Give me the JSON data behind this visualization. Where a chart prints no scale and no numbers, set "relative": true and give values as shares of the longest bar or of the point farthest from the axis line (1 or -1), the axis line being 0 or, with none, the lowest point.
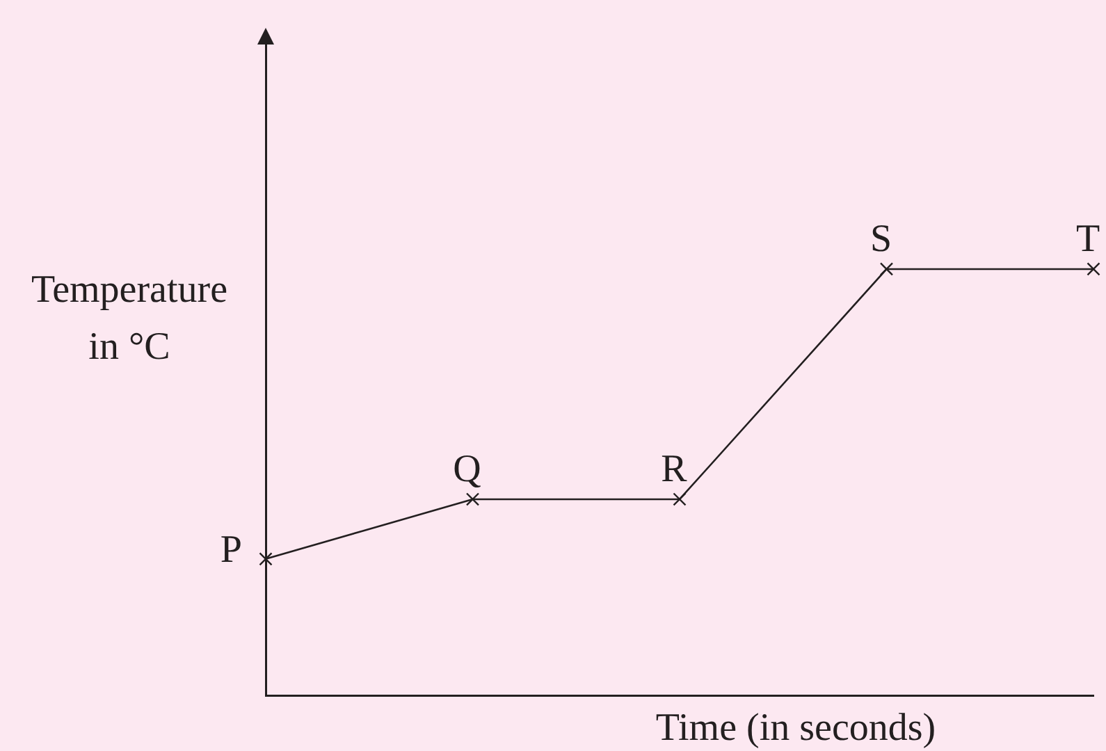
{
  "chart_data": {
    "type": "line",
    "xlabel": "Time (in seconds)",
    "ylabel": "Temperature in °C",
    "relative": true,
    "categories": [
      null,
      null,
      null,
      null,
      null
    ],
    "series": [
      {
        "color": "#231f20",
        "values": [
          0.32,
          0.46,
          0.46,
          1,
          1
        ]
      }
    ],
    "marker": "cross",
    "line_style": "solid",
    "annotations": [
      "P",
      "Q",
      "R",
      "S",
      "T"
    ]
  }
}
